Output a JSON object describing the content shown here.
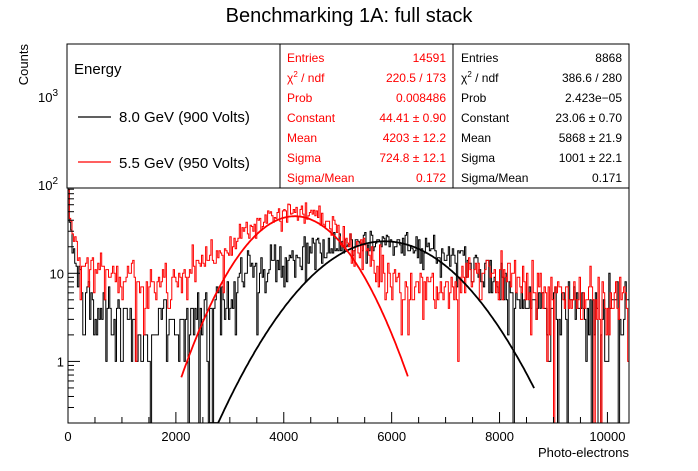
{
  "chart_data": {
    "type": "line",
    "title": "Benchmarking 1A: full stack",
    "xlabel": "Photo-electrons",
    "ylabel": "Counts",
    "xlim": [
      0,
      10400
    ],
    "ylim": [
      0.2,
      4000
    ],
    "yscale": "log",
    "x_ticks": [
      0,
      2000,
      4000,
      6000,
      8000,
      10000
    ],
    "y_ticks": [
      {
        "value": 1,
        "label": "1"
      },
      {
        "value": 10,
        "label": "10"
      },
      {
        "value": 100,
        "label": "10",
        "exp": "2"
      },
      {
        "value": 1000,
        "label": "10",
        "exp": "3"
      }
    ],
    "legend": {
      "title": "Energy",
      "placement": "top-left",
      "entries": [
        {
          "label": "8.0 GeV (900 Volts)",
          "color": "#000000"
        },
        {
          "label": "5.5 GeV (950 Volts)",
          "color": "#ff0000"
        }
      ]
    },
    "stats_boxes": [
      {
        "color": "#ff0000",
        "rows": [
          {
            "name": "Entries",
            "value": "14591"
          },
          {
            "name": "χ",
            "sup": "2",
            "name_tail": " / ndf",
            "value": "220.5 / 173"
          },
          {
            "name": "Prob",
            "value": "0.008486"
          },
          {
            "name": "Constant",
            "value": "44.41 ± 0.90"
          },
          {
            "name": "Mean",
            "value": "4203 ± 12.2"
          },
          {
            "name": "Sigma",
            "value": "724.8 ± 12.1"
          },
          {
            "name": "Sigma/Mean",
            "value": "0.172"
          }
        ]
      },
      {
        "color": "#000000",
        "rows": [
          {
            "name": "Entries",
            "value": "8868"
          },
          {
            "name": "χ",
            "sup": "2",
            "name_tail": " / ndf",
            "value": "386.6 / 280"
          },
          {
            "name": "Prob",
            "value": "2.423e−05"
          },
          {
            "name": "Constant",
            "value": "23.06 ± 0.70"
          },
          {
            "name": "Mean",
            "value": "5868 ± 21.9"
          },
          {
            "name": "Sigma",
            "value": "1001 ± 22.1"
          },
          {
            "name": "Sigma/Mean",
            "value": "0.171"
          }
        ]
      }
    ],
    "series": [
      {
        "name": "8.0 GeV (900 Volts)",
        "color": "#000000",
        "fit": {
          "constant": 23.06,
          "mean": 5868,
          "sigma": 1001,
          "range": [
            2600,
            8650
          ]
        },
        "bin_width": 25,
        "profile": [
          [
            0,
            80
          ],
          [
            60,
            30
          ],
          [
            150,
            12
          ],
          [
            300,
            5
          ],
          [
            600,
            3
          ],
          [
            1200,
            2.5
          ],
          [
            2000,
            2.5
          ],
          [
            2600,
            4
          ],
          [
            3200,
            8
          ],
          [
            4000,
            14
          ],
          [
            4600,
            18
          ],
          [
            5000,
            20
          ],
          [
            5500,
            22
          ],
          [
            6000,
            22
          ],
          [
            6500,
            21
          ],
          [
            7000,
            18
          ],
          [
            7500,
            13
          ],
          [
            8000,
            8
          ],
          [
            8500,
            5
          ],
          [
            9000,
            4
          ],
          [
            9500,
            4
          ],
          [
            10000,
            4
          ],
          [
            10400,
            4
          ]
        ]
      },
      {
        "name": "5.5 GeV (950 Volts)",
        "color": "#ff0000",
        "fit": {
          "constant": 44.41,
          "mean": 4203,
          "sigma": 724.8,
          "range": [
            2100,
            6300
          ]
        },
        "bin_width": 25,
        "profile": [
          [
            0,
            120
          ],
          [
            60,
            40
          ],
          [
            150,
            20
          ],
          [
            300,
            12
          ],
          [
            800,
            9
          ],
          [
            1500,
            8
          ],
          [
            2000,
            9
          ],
          [
            2500,
            13
          ],
          [
            3000,
            22
          ],
          [
            3500,
            36
          ],
          [
            4000,
            48
          ],
          [
            4300,
            50
          ],
          [
            4700,
            44
          ],
          [
            5000,
            33
          ],
          [
            5400,
            19
          ],
          [
            5800,
            10
          ],
          [
            6300,
            6
          ],
          [
            6800,
            6
          ],
          [
            7200,
            7
          ],
          [
            7600,
            9
          ],
          [
            8000,
            10
          ],
          [
            8500,
            8
          ],
          [
            9000,
            6
          ],
          [
            9500,
            6
          ],
          [
            10000,
            5
          ],
          [
            10400,
            5
          ]
        ]
      }
    ]
  }
}
